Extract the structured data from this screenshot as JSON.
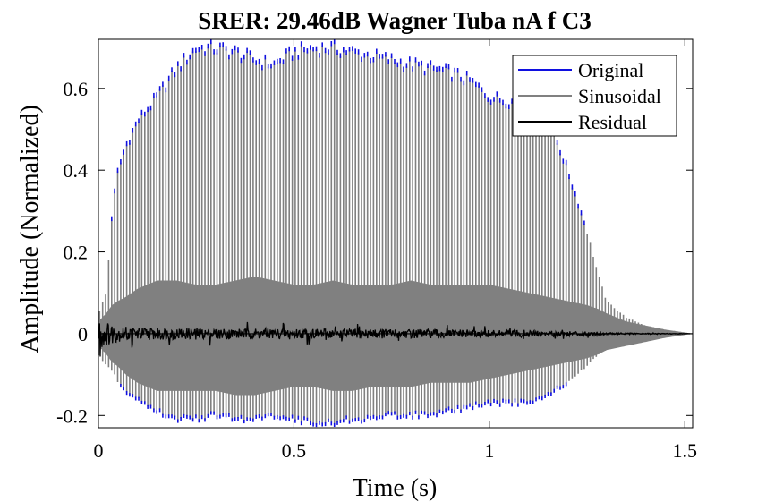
{
  "chart_data": {
    "type": "line",
    "title": "SRER: 29.46dB Wagner Tuba nA f C3",
    "xlabel": "Time (s)",
    "ylabel": "Amplitude (Normalized)",
    "xlim": [
      0,
      1.52
    ],
    "ylim": [
      -0.23,
      0.72
    ],
    "xticks": [
      0,
      0.5,
      1,
      1.5
    ],
    "xtick_labels": [
      "0",
      "0.5",
      "1",
      "1.5"
    ],
    "yticks": [
      -0.2,
      0,
      0.2,
      0.4,
      0.6
    ],
    "ytick_labels": [
      "-0.2",
      "0",
      "0.2",
      "0.4",
      "0.6"
    ],
    "grid": false,
    "legend_position": "top-right",
    "series": [
      {
        "name": "Original",
        "color": "#1010e0"
      },
      {
        "name": "Sinusoidal",
        "color": "#808080"
      },
      {
        "name": "Residual",
        "color": "#000000"
      }
    ],
    "envelope": {
      "time": [
        0,
        0.02,
        0.035,
        0.05,
        0.07,
        0.1,
        0.15,
        0.2,
        0.25,
        0.3,
        0.35,
        0.4,
        0.45,
        0.5,
        0.55,
        0.6,
        0.65,
        0.7,
        0.75,
        0.8,
        0.85,
        0.9,
        0.95,
        1.0,
        1.05,
        1.1,
        1.15,
        1.2,
        1.25,
        1.28,
        1.3,
        1.35,
        1.4,
        1.45,
        1.5,
        1.52
      ],
      "upper": [
        0.05,
        0.1,
        0.3,
        0.4,
        0.46,
        0.52,
        0.58,
        0.65,
        0.7,
        0.7,
        0.69,
        0.67,
        0.66,
        0.69,
        0.7,
        0.7,
        0.69,
        0.68,
        0.67,
        0.66,
        0.65,
        0.64,
        0.62,
        0.58,
        0.57,
        0.56,
        0.53,
        0.4,
        0.25,
        0.14,
        0.08,
        0.04,
        0.02,
        0.01,
        0.003,
        0.0
      ],
      "lower": [
        -0.05,
        -0.08,
        -0.09,
        -0.12,
        -0.14,
        -0.16,
        -0.19,
        -0.21,
        -0.21,
        -0.2,
        -0.21,
        -0.21,
        -0.2,
        -0.21,
        -0.22,
        -0.22,
        -0.21,
        -0.21,
        -0.2,
        -0.2,
        -0.2,
        -0.19,
        -0.18,
        -0.17,
        -0.17,
        -0.17,
        -0.15,
        -0.12,
        -0.08,
        -0.05,
        -0.04,
        -0.02,
        -0.01,
        -0.005,
        -0.002,
        0.0
      ],
      "inner_upper": [
        0.03,
        0.05,
        0.07,
        0.08,
        0.09,
        0.11,
        0.13,
        0.13,
        0.12,
        0.12,
        0.13,
        0.14,
        0.13,
        0.12,
        0.12,
        0.13,
        0.12,
        0.12,
        0.12,
        0.13,
        0.12,
        0.12,
        0.12,
        0.12,
        0.11,
        0.1,
        0.09,
        0.08,
        0.07,
        0.06,
        0.05,
        0.03,
        0.02,
        0.01,
        0.003,
        0.0
      ],
      "inner_lower": [
        -0.03,
        -0.05,
        -0.07,
        -0.08,
        -0.1,
        -0.12,
        -0.14,
        -0.14,
        -0.14,
        -0.14,
        -0.15,
        -0.15,
        -0.14,
        -0.13,
        -0.13,
        -0.14,
        -0.14,
        -0.13,
        -0.13,
        -0.13,
        -0.12,
        -0.12,
        -0.12,
        -0.11,
        -0.1,
        -0.09,
        -0.08,
        -0.07,
        -0.06,
        -0.05,
        -0.04,
        -0.03,
        -0.02,
        -0.01,
        -0.003,
        0.0
      ],
      "residual": [
        0.04,
        0.03,
        0.025,
        0.02,
        0.018,
        0.016,
        0.015,
        0.014,
        0.014,
        0.013,
        0.013,
        0.014,
        0.013,
        0.013,
        0.012,
        0.012,
        0.012,
        0.012,
        0.012,
        0.011,
        0.011,
        0.01,
        0.01,
        0.009,
        0.008,
        0.008,
        0.007,
        0.006,
        0.005,
        0.004,
        0.003,
        0.002,
        0.001,
        0.001,
        0.0005,
        0.0
      ]
    },
    "period_s": 0.0077
  }
}
